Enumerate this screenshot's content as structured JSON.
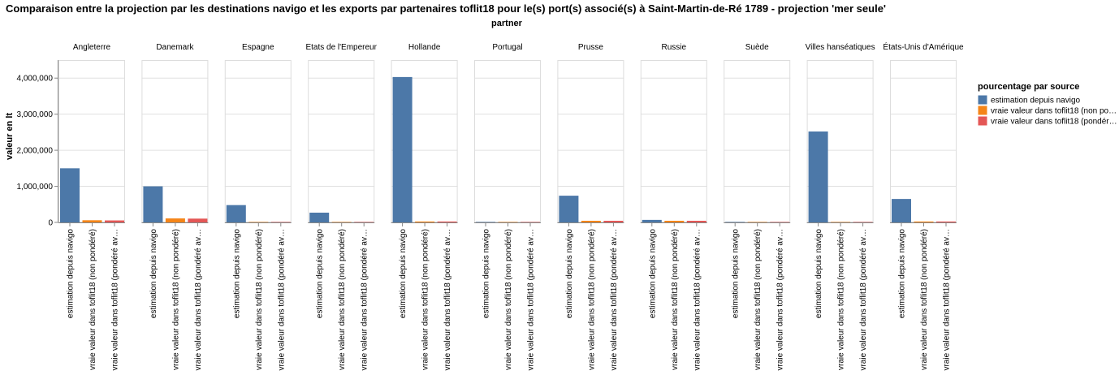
{
  "chart_data": {
    "type": "bar",
    "title": "Comparaison entre la projection par les destinations navigo et les exports par partenaires toflit18 pour le(s) port(s) associé(s) à Saint-Martin-de-Ré 1789 - projection 'mer seule'",
    "facet_header": "partner",
    "ylabel": "valeur en lt",
    "xlabel": "",
    "ylim": [
      0,
      4500000
    ],
    "yticks": [
      0,
      1000000,
      2000000,
      3000000,
      4000000
    ],
    "ytick_labels": [
      "0",
      "1,000,000",
      "2,000,000",
      "3,000,000",
      "4,000,000"
    ],
    "grid": true,
    "legend_position": "right",
    "legend_title": "pourcentage par source",
    "categories": [
      "estimation depuis navigo",
      "vraie valeur dans toflit18 (non pondéré)",
      "vraie valeur dans toflit18 (pondéré avec les ports)"
    ],
    "category_tick_labels": [
      "estimation depuis navigo",
      "vraie valeur dans toflit18 (non pondéré)",
      "vraie valeur dans toflit18 (pondéré av…"
    ],
    "legend_labels": [
      "estimation depuis navigo",
      "vraie valeur dans toflit18 (non po…",
      "vraie valeur dans toflit18 (pondér…"
    ],
    "colors": [
      "#4c78a8",
      "#f58518",
      "#e45756"
    ],
    "facets": [
      {
        "partner": "Angleterre",
        "values": [
          1500000,
          60000,
          55000
        ]
      },
      {
        "partner": "Danemark",
        "values": [
          1000000,
          110000,
          105000
        ]
      },
      {
        "partner": "Espagne",
        "values": [
          480000,
          3000,
          3000
        ]
      },
      {
        "partner": "Etats de l'Empereur",
        "values": [
          270000,
          2000,
          2000
        ]
      },
      {
        "partner": "Hollande",
        "values": [
          4030000,
          25000,
          25000
        ]
      },
      {
        "partner": "Portugal",
        "values": [
          3000,
          2000,
          2000
        ]
      },
      {
        "partner": "Prusse",
        "values": [
          740000,
          45000,
          45000
        ]
      },
      {
        "partner": "Russie",
        "values": [
          70000,
          45000,
          45000
        ]
      },
      {
        "partner": "Suède",
        "values": [
          5000,
          3000,
          3000
        ]
      },
      {
        "partner": "Villes hanséatiques",
        "values": [
          2520000,
          8000,
          8000
        ]
      },
      {
        "partner": "États-Unis d'Amérique",
        "values": [
          650000,
          25000,
          25000
        ]
      }
    ]
  }
}
